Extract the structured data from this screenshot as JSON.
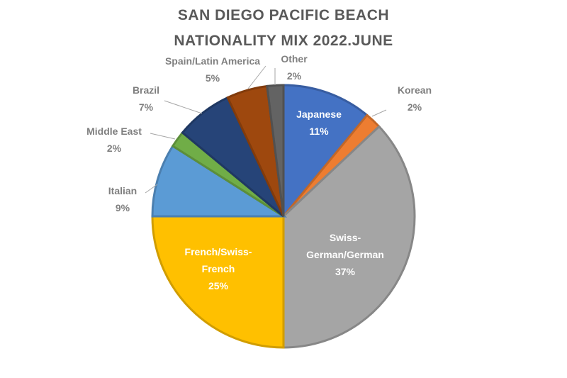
{
  "chart_data": {
    "type": "pie",
    "title_lines": [
      "SAN DIEGO PACIFIC BEACH",
      "NATIONALITY MIX 2022.JUNE"
    ],
    "slices": [
      {
        "label_lines": [
          "Japanese"
        ],
        "value_label": "11%",
        "value": 11,
        "color": "#4472C4",
        "inside": true
      },
      {
        "label_lines": [
          "Korean"
        ],
        "value_label": "2%",
        "value": 2,
        "color": "#ED7D31",
        "inside": false
      },
      {
        "label_lines": [
          "Swiss-",
          "German/German"
        ],
        "value_label": "37%",
        "value": 37,
        "color": "#A5A5A5",
        "inside": true
      },
      {
        "label_lines": [
          "French/Swiss-",
          "French"
        ],
        "value_label": "25%",
        "value": 25,
        "color": "#FFC000",
        "inside": true
      },
      {
        "label_lines": [
          "Italian"
        ],
        "value_label": "9%",
        "value": 9,
        "color": "#5B9BD5",
        "inside": false
      },
      {
        "label_lines": [
          "Middle East"
        ],
        "value_label": "2%",
        "value": 2,
        "color": "#70AD47",
        "inside": false
      },
      {
        "label_lines": [
          "Brazil"
        ],
        "value_label": "7%",
        "value": 7,
        "color": "#264478",
        "inside": false
      },
      {
        "label_lines": [
          "Spain/Latin America"
        ],
        "value_label": "5%",
        "value": 5,
        "color": "#9E480E",
        "inside": false
      },
      {
        "label_lines": [
          "Other"
        ],
        "value_label": "2%",
        "value": 2,
        "color": "#636363",
        "inside": false
      }
    ],
    "start_angle": "12 o'clock",
    "direction": "clockwise",
    "legend": "none"
  }
}
